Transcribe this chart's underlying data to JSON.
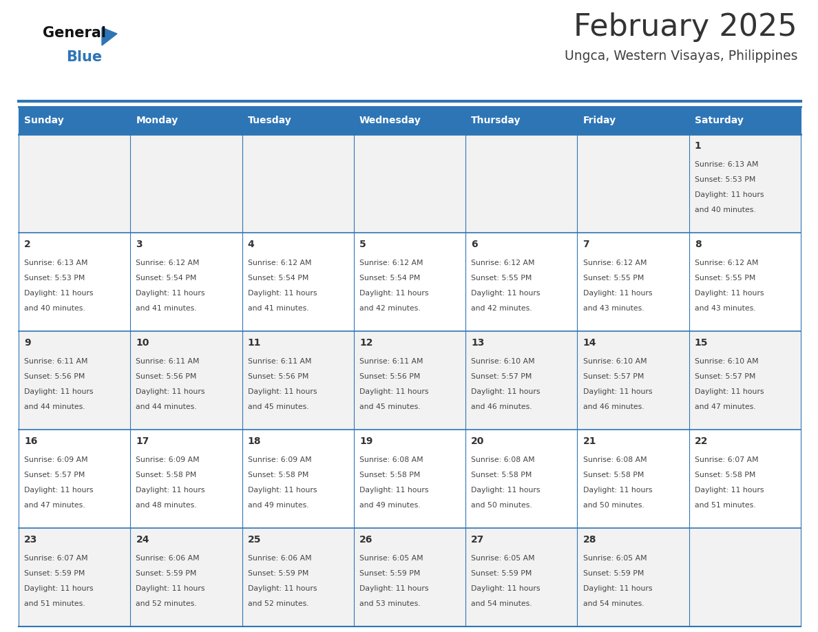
{
  "title": "February 2025",
  "subtitle": "Ungca, Western Visayas, Philippines",
  "header_bg": "#2E75B6",
  "header_text_color": "#FFFFFF",
  "cell_bg_odd": "#F2F2F2",
  "cell_bg_even": "#FFFFFF",
  "border_color": "#2E75B6",
  "day_headers": [
    "Sunday",
    "Monday",
    "Tuesday",
    "Wednesday",
    "Thursday",
    "Friday",
    "Saturday"
  ],
  "title_color": "#333333",
  "subtitle_color": "#404040",
  "days": [
    {
      "day": 1,
      "col": 6,
      "row": 0,
      "sunrise": "6:13 AM",
      "sunset": "5:53 PM",
      "daylight_hours": 11,
      "daylight_minutes": 40
    },
    {
      "day": 2,
      "col": 0,
      "row": 1,
      "sunrise": "6:13 AM",
      "sunset": "5:53 PM",
      "daylight_hours": 11,
      "daylight_minutes": 40
    },
    {
      "day": 3,
      "col": 1,
      "row": 1,
      "sunrise": "6:12 AM",
      "sunset": "5:54 PM",
      "daylight_hours": 11,
      "daylight_minutes": 41
    },
    {
      "day": 4,
      "col": 2,
      "row": 1,
      "sunrise": "6:12 AM",
      "sunset": "5:54 PM",
      "daylight_hours": 11,
      "daylight_minutes": 41
    },
    {
      "day": 5,
      "col": 3,
      "row": 1,
      "sunrise": "6:12 AM",
      "sunset": "5:54 PM",
      "daylight_hours": 11,
      "daylight_minutes": 42
    },
    {
      "day": 6,
      "col": 4,
      "row": 1,
      "sunrise": "6:12 AM",
      "sunset": "5:55 PM",
      "daylight_hours": 11,
      "daylight_minutes": 42
    },
    {
      "day": 7,
      "col": 5,
      "row": 1,
      "sunrise": "6:12 AM",
      "sunset": "5:55 PM",
      "daylight_hours": 11,
      "daylight_minutes": 43
    },
    {
      "day": 8,
      "col": 6,
      "row": 1,
      "sunrise": "6:12 AM",
      "sunset": "5:55 PM",
      "daylight_hours": 11,
      "daylight_minutes": 43
    },
    {
      "day": 9,
      "col": 0,
      "row": 2,
      "sunrise": "6:11 AM",
      "sunset": "5:56 PM",
      "daylight_hours": 11,
      "daylight_minutes": 44
    },
    {
      "day": 10,
      "col": 1,
      "row": 2,
      "sunrise": "6:11 AM",
      "sunset": "5:56 PM",
      "daylight_hours": 11,
      "daylight_minutes": 44
    },
    {
      "day": 11,
      "col": 2,
      "row": 2,
      "sunrise": "6:11 AM",
      "sunset": "5:56 PM",
      "daylight_hours": 11,
      "daylight_minutes": 45
    },
    {
      "day": 12,
      "col": 3,
      "row": 2,
      "sunrise": "6:11 AM",
      "sunset": "5:56 PM",
      "daylight_hours": 11,
      "daylight_minutes": 45
    },
    {
      "day": 13,
      "col": 4,
      "row": 2,
      "sunrise": "6:10 AM",
      "sunset": "5:57 PM",
      "daylight_hours": 11,
      "daylight_minutes": 46
    },
    {
      "day": 14,
      "col": 5,
      "row": 2,
      "sunrise": "6:10 AM",
      "sunset": "5:57 PM",
      "daylight_hours": 11,
      "daylight_minutes": 46
    },
    {
      "day": 15,
      "col": 6,
      "row": 2,
      "sunrise": "6:10 AM",
      "sunset": "5:57 PM",
      "daylight_hours": 11,
      "daylight_minutes": 47
    },
    {
      "day": 16,
      "col": 0,
      "row": 3,
      "sunrise": "6:09 AM",
      "sunset": "5:57 PM",
      "daylight_hours": 11,
      "daylight_minutes": 47
    },
    {
      "day": 17,
      "col": 1,
      "row": 3,
      "sunrise": "6:09 AM",
      "sunset": "5:58 PM",
      "daylight_hours": 11,
      "daylight_minutes": 48
    },
    {
      "day": 18,
      "col": 2,
      "row": 3,
      "sunrise": "6:09 AM",
      "sunset": "5:58 PM",
      "daylight_hours": 11,
      "daylight_minutes": 49
    },
    {
      "day": 19,
      "col": 3,
      "row": 3,
      "sunrise": "6:08 AM",
      "sunset": "5:58 PM",
      "daylight_hours": 11,
      "daylight_minutes": 49
    },
    {
      "day": 20,
      "col": 4,
      "row": 3,
      "sunrise": "6:08 AM",
      "sunset": "5:58 PM",
      "daylight_hours": 11,
      "daylight_minutes": 50
    },
    {
      "day": 21,
      "col": 5,
      "row": 3,
      "sunrise": "6:08 AM",
      "sunset": "5:58 PM",
      "daylight_hours": 11,
      "daylight_minutes": 50
    },
    {
      "day": 22,
      "col": 6,
      "row": 3,
      "sunrise": "6:07 AM",
      "sunset": "5:58 PM",
      "daylight_hours": 11,
      "daylight_minutes": 51
    },
    {
      "day": 23,
      "col": 0,
      "row": 4,
      "sunrise": "6:07 AM",
      "sunset": "5:59 PM",
      "daylight_hours": 11,
      "daylight_minutes": 51
    },
    {
      "day": 24,
      "col": 1,
      "row": 4,
      "sunrise": "6:06 AM",
      "sunset": "5:59 PM",
      "daylight_hours": 11,
      "daylight_minutes": 52
    },
    {
      "day": 25,
      "col": 2,
      "row": 4,
      "sunrise": "6:06 AM",
      "sunset": "5:59 PM",
      "daylight_hours": 11,
      "daylight_minutes": 52
    },
    {
      "day": 26,
      "col": 3,
      "row": 4,
      "sunrise": "6:05 AM",
      "sunset": "5:59 PM",
      "daylight_hours": 11,
      "daylight_minutes": 53
    },
    {
      "day": 27,
      "col": 4,
      "row": 4,
      "sunrise": "6:05 AM",
      "sunset": "5:59 PM",
      "daylight_hours": 11,
      "daylight_minutes": 54
    },
    {
      "day": 28,
      "col": 5,
      "row": 4,
      "sunrise": "6:05 AM",
      "sunset": "5:59 PM",
      "daylight_hours": 11,
      "daylight_minutes": 54
    }
  ],
  "num_rows": 5,
  "num_cols": 7,
  "logo_text_general": "General",
  "logo_text_blue": "Blue",
  "logo_triangle_color": "#2E75B6",
  "top_line_color": "#2E75B6"
}
